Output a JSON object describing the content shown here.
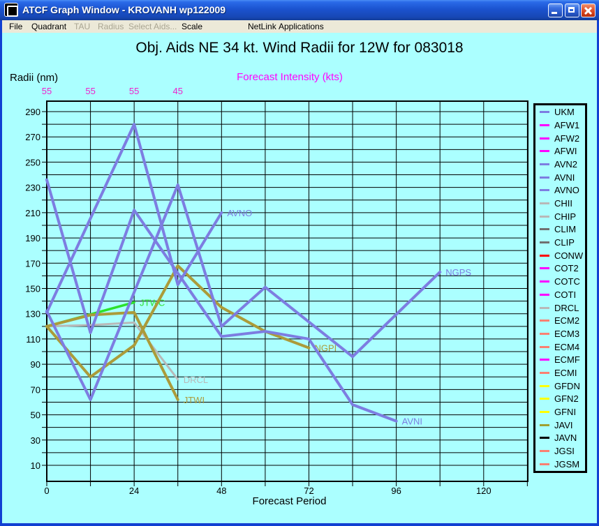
{
  "window": {
    "title": "ATCF Graph Window - KROVANH wp122009",
    "buttons": {
      "minimize": "minimize",
      "maximize": "maximize",
      "close": "close"
    }
  },
  "menu": {
    "items": [
      {
        "label": "File",
        "enabled": true
      },
      {
        "label": "Quadrant",
        "enabled": true
      },
      {
        "label": "TAU",
        "enabled": false
      },
      {
        "label": "Radius",
        "enabled": false
      },
      {
        "label": "Select Aids...",
        "enabled": false
      },
      {
        "label": "Scale",
        "enabled": true
      },
      {
        "label": "NetLink",
        "enabled": true
      },
      {
        "label": "Applications",
        "enabled": true
      }
    ]
  },
  "chart": {
    "title": "Obj. Aids NE 34 kt. Wind Radii for 12W for 083018",
    "y_axis_label": "Radii (nm)",
    "intensity_label": "Forecast Intensity (kts)",
    "x_axis_label": "Forecast Period"
  },
  "chart_data": {
    "type": "line",
    "title": "Obj. Aids NE 34 kt. Wind Radii for 12W for 083018",
    "xlabel": "Forecast Period",
    "ylabel": "Radii (nm)",
    "xlim": [
      0,
      132
    ],
    "ylim": [
      -3,
      300
    ],
    "grid": true,
    "x_gridline_step": 12,
    "y_gridline_step": 10,
    "x_tick_labels": [
      0,
      24,
      48,
      72,
      96,
      120
    ],
    "y_tick_labels": [
      10,
      30,
      50,
      70,
      90,
      110,
      130,
      150,
      170,
      190,
      210,
      230,
      250,
      270,
      290
    ],
    "legend_position": "right",
    "forecast_intensity": {
      "hours": [
        0,
        12,
        24,
        36
      ],
      "values": [
        "55",
        "55",
        "55",
        "45"
      ],
      "color": "#ee22cc"
    },
    "series": [
      {
        "name": "DRCL",
        "color": "#b8b8b8",
        "width": 3,
        "points": [
          [
            0,
            120
          ],
          [
            12,
            121
          ],
          [
            24,
            123
          ],
          [
            36,
            78
          ]
        ]
      },
      {
        "name": "JTWC",
        "color": "#2ce22c",
        "width": 3.5,
        "points": [
          [
            0,
            120
          ],
          [
            24,
            139
          ]
        ]
      },
      {
        "name": "JTWI",
        "color": "#ab9b3a",
        "width": 4,
        "points": [
          [
            0,
            120
          ],
          [
            12,
            129
          ],
          [
            24,
            131
          ],
          [
            36,
            62
          ]
        ]
      },
      {
        "name": "NGPI",
        "color": "#ab9b3a",
        "width": 4,
        "points": [
          [
            0,
            120
          ],
          [
            12,
            80
          ],
          [
            24,
            105
          ],
          [
            36,
            168
          ],
          [
            48,
            135
          ],
          [
            60,
            116
          ],
          [
            72,
            103
          ]
        ]
      },
      {
        "name": "AVNO",
        "color": "#7d7de1",
        "width": 4,
        "points": [
          [
            0,
            131
          ],
          [
            24,
            280
          ],
          [
            36,
            153
          ],
          [
            48,
            210
          ]
        ]
      },
      {
        "name": "AVNI",
        "color": "#7d7de1",
        "width": 4,
        "points": [
          [
            0,
            236
          ],
          [
            12,
            115
          ],
          [
            24,
            212
          ],
          [
            48,
            112
          ],
          [
            60,
            116
          ],
          [
            72,
            110
          ],
          [
            84,
            58
          ],
          [
            96,
            45
          ]
        ]
      },
      {
        "name": "NGPS",
        "color": "#7d7de1",
        "width": 4,
        "points": [
          [
            0,
            132
          ],
          [
            12,
            62
          ],
          [
            36,
            232
          ],
          [
            48,
            120
          ],
          [
            60,
            151
          ],
          [
            84,
            96
          ],
          [
            108,
            163
          ]
        ]
      }
    ]
  },
  "legend": {
    "entries": [
      {
        "label": "UKM",
        "color": "#7d7de1"
      },
      {
        "label": "AFW1",
        "color": "#ff00ff"
      },
      {
        "label": "AFW2",
        "color": "#ff00ff"
      },
      {
        "label": "AFWI",
        "color": "#ff00ff"
      },
      {
        "label": "AVN2",
        "color": "#7d7de1"
      },
      {
        "label": "AVNI",
        "color": "#7d7de1"
      },
      {
        "label": "AVNO",
        "color": "#7d7de1"
      },
      {
        "label": "CHII",
        "color": "#b8b8b8"
      },
      {
        "label": "CHIP",
        "color": "#b8b8b8"
      },
      {
        "label": "CLIM",
        "color": "#707070"
      },
      {
        "label": "CLIP",
        "color": "#707070"
      },
      {
        "label": "CONW",
        "color": "#ff0000"
      },
      {
        "label": "COT2",
        "color": "#ff00ff"
      },
      {
        "label": "COTC",
        "color": "#ff00ff"
      },
      {
        "label": "COTI",
        "color": "#ff00ff"
      },
      {
        "label": "DRCL",
        "color": "#b8b8b8"
      },
      {
        "label": "ECM2",
        "color": "#fa8072"
      },
      {
        "label": "ECM3",
        "color": "#fa8072"
      },
      {
        "label": "ECM4",
        "color": "#fa8072"
      },
      {
        "label": "ECMF",
        "color": "#ff00ff"
      },
      {
        "label": "ECMI",
        "color": "#fa8072"
      },
      {
        "label": "GFDN",
        "color": "#ffff00"
      },
      {
        "label": "GFN2",
        "color": "#ffff00"
      },
      {
        "label": "GFNI",
        "color": "#ffff00"
      },
      {
        "label": "JAVI",
        "color": "#a0a030"
      },
      {
        "label": "JAVN",
        "color": "#000000"
      },
      {
        "label": "JGSI",
        "color": "#fa8072"
      },
      {
        "label": "JGSM",
        "color": "#fa8072"
      }
    ]
  }
}
